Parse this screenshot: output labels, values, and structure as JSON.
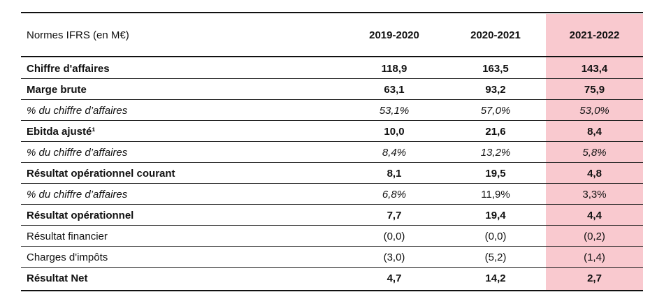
{
  "header": {
    "label": "Normes IFRS (en M€)",
    "years": [
      "2019-2020",
      "2020-2021",
      "2021-2022"
    ]
  },
  "rows": [
    {
      "label": "Chiffre d'affaires",
      "values": [
        "118,9",
        "163,5",
        "143,4"
      ],
      "style": "bold"
    },
    {
      "label": "Marge brute",
      "values": [
        "63,1",
        "93,2",
        "75,9"
      ],
      "style": "bold"
    },
    {
      "label": "% du chiffre d’affaires",
      "values": [
        "53,1%",
        "57,0%",
        "53,0%"
      ],
      "style": "italic"
    },
    {
      "label": "Ebitda ajusté¹",
      "values": [
        "10,0",
        "21,6",
        "8,4"
      ],
      "style": "bold"
    },
    {
      "label": "% du chiffre d’affaires",
      "values": [
        "8,4%",
        "13,2%",
        "5,8%"
      ],
      "style": "italic"
    },
    {
      "label": "Résultat opérationnel courant",
      "values": [
        "8,1",
        "19,5",
        "4,8"
      ],
      "style": "bold"
    },
    {
      "label": "% du chiffre d’affaires",
      "values": [
        "6,8%",
        "11,9%",
        "3,3%"
      ],
      "style": "mixed"
    },
    {
      "label": "Résultat opérationnel",
      "values": [
        "7,7",
        "19,4",
        "4,4"
      ],
      "style": "bold"
    },
    {
      "label": "Résultat financier",
      "values": [
        "(0,0)",
        "(0,0)",
        "(0,2)"
      ],
      "style": "normal"
    },
    {
      "label": "Charges d'impôts",
      "values": [
        "(3,0)",
        "(5,2)",
        "(1,4)"
      ],
      "style": "normal"
    },
    {
      "label": "Résultat Net",
      "values": [
        "4,7",
        "14,2",
        "2,7"
      ],
      "style": "bold"
    }
  ],
  "colors": {
    "highlight_column": "#f9c9cf",
    "rules": "#222222"
  }
}
